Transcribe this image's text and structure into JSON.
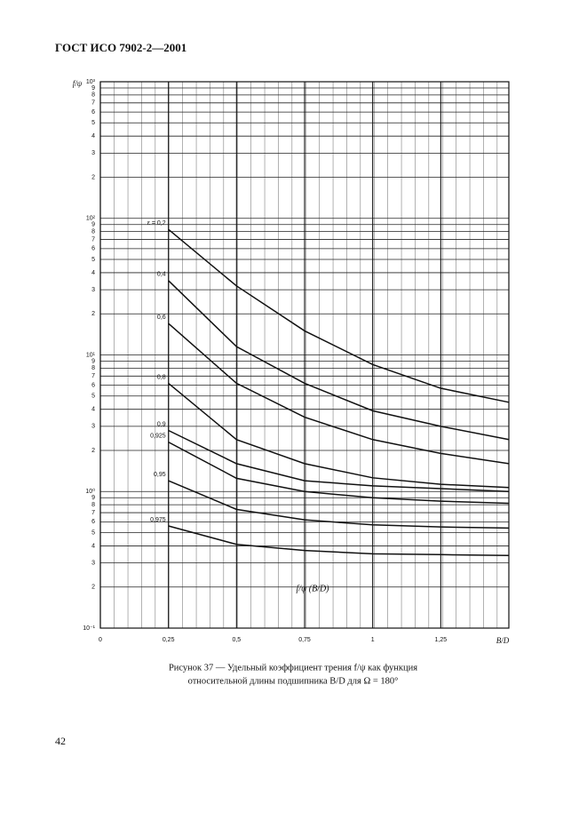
{
  "header": "ГОСТ ИСО 7902-2—2001",
  "chart_data": {
    "type": "line",
    "ylabel": "f/ψ",
    "xlabel": "B/D",
    "annotation": "f/ψ (B/D)",
    "log_y": true,
    "grid": true,
    "color": "#111111",
    "x": [
      0.25,
      0.5,
      0.75,
      1,
      1.25,
      1.5
    ],
    "xlim": [
      0,
      1.5
    ],
    "xticks": [
      0,
      {
        "value": 0.25,
        "label": "0,25"
      },
      {
        "value": 0.5,
        "label": "0,5"
      },
      {
        "value": 0.75,
        "label": "0,75"
      },
      1,
      {
        "value": 1.25,
        "label": "1,25"
      }
    ],
    "ylim": [
      0.1,
      1000
    ],
    "yticks": [
      {
        "value": 0.1,
        "label": "10⁻¹"
      },
      {
        "value": 0.2,
        "label": "2"
      },
      {
        "value": 0.3,
        "label": "3"
      },
      {
        "value": 0.4,
        "label": "4"
      },
      {
        "value": 0.5,
        "label": "5"
      },
      {
        "value": 0.6,
        "label": "6"
      },
      {
        "value": 0.7,
        "label": "7"
      },
      {
        "value": 0.8,
        "label": "8"
      },
      {
        "value": 0.9,
        "label": "9"
      },
      {
        "value": 1,
        "label": "10⁰"
      },
      2,
      3,
      4,
      5,
      6,
      7,
      8,
      9,
      {
        "value": 10,
        "label": "10¹"
      },
      {
        "value": 20,
        "label": "2"
      },
      {
        "value": 30,
        "label": "3"
      },
      {
        "value": 40,
        "label": "4"
      },
      {
        "value": 50,
        "label": "5"
      },
      {
        "value": 60,
        "label": "6"
      },
      {
        "value": 70,
        "label": "7"
      },
      {
        "value": 80,
        "label": "8"
      },
      {
        "value": 90,
        "label": "9"
      },
      {
        "value": 100,
        "label": "10²"
      },
      {
        "value": 200,
        "label": "2"
      },
      {
        "value": 300,
        "label": "3"
      },
      {
        "value": 400,
        "label": "4"
      },
      {
        "value": 500,
        "label": "5"
      },
      {
        "value": 600,
        "label": "6"
      },
      {
        "value": 700,
        "label": "7"
      },
      {
        "value": 800,
        "label": "8"
      },
      {
        "value": 900,
        "label": "9"
      },
      {
        "value": 1000,
        "label": "10³"
      }
    ],
    "series": [
      {
        "name": "ε = 0,2",
        "values": [
          83,
          32,
          15,
          8.5,
          5.7,
          4.5
        ]
      },
      {
        "name": "0,4",
        "values": [
          35,
          11.5,
          6.2,
          3.9,
          3.0,
          2.4
        ]
      },
      {
        "name": "0,6",
        "values": [
          17,
          6.2,
          3.5,
          2.4,
          1.9,
          1.6
        ]
      },
      {
        "name": "0,8",
        "values": [
          6.2,
          2.4,
          1.6,
          1.26,
          1.13,
          1.07
        ]
      },
      {
        "name": "0,9",
        "values": [
          2.8,
          1.6,
          1.2,
          1.1,
          1.05,
          1.0
        ]
      },
      {
        "name": "0,925",
        "values": [
          2.3,
          1.25,
          1.0,
          0.9,
          0.85,
          0.82
        ]
      },
      {
        "name": "0,95",
        "values": [
          1.2,
          0.74,
          0.62,
          0.57,
          0.55,
          0.54
        ]
      },
      {
        "name": "0,975",
        "values": [
          0.56,
          0.41,
          0.37,
          0.35,
          0.345,
          0.34
        ]
      }
    ]
  },
  "caption": [
    "Рисунок 37 — Удельный коэффициент трения f/ψ как функция",
    "относительной длины подшипника B/D для Ω = 180°"
  ],
  "page_number": "42"
}
